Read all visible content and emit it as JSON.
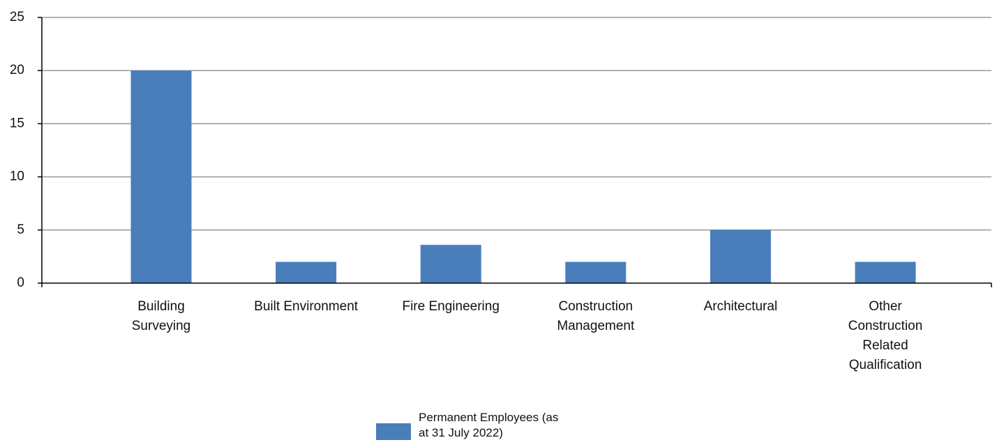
{
  "chart_data": {
    "type": "bar",
    "categories": [
      "Building Surveying",
      "Built Environment",
      "Fire Engineering",
      "Construction Management",
      "Architectural",
      "Other Construction Related Qualification"
    ],
    "series": [
      {
        "name": "Permanent Employees (as at 31 July 2022)",
        "color": "#4a7ebb",
        "values": [
          20,
          2,
          3.6,
          2,
          5,
          2
        ]
      }
    ],
    "ylim": [
      0,
      25
    ],
    "yticks": [
      0,
      5,
      10,
      15,
      20,
      25
    ],
    "grid": true,
    "legend": "bottom"
  }
}
